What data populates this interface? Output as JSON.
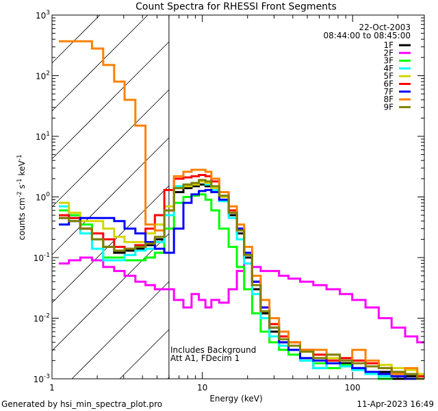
{
  "chart_data": {
    "type": "line",
    "title": "Count Spectra for RHESSI Front Segments",
    "xlabel": "Energy (keV)",
    "ylabel": [
      "counts cm",
      "-2",
      " s",
      "-1",
      " keV",
      "-1"
    ],
    "xscale": "log",
    "yscale": "log",
    "xlim": [
      1,
      300
    ],
    "ylim": [
      0.001,
      1000
    ],
    "xticks": [
      {
        "value": 1,
        "label": "1"
      },
      {
        "value": 10,
        "label": "10"
      },
      {
        "value": 100,
        "label": "100"
      }
    ],
    "yticks": [
      {
        "value": 0.001,
        "base": "10",
        "exp": "-3"
      },
      {
        "value": 0.01,
        "base": "10",
        "exp": "-2"
      },
      {
        "value": 0.1,
        "base": "10",
        "exp": "-1"
      },
      {
        "value": 1,
        "base": "10",
        "exp": "0"
      },
      {
        "value": 10,
        "base": "10",
        "exp": "1"
      },
      {
        "value": 100,
        "base": "10",
        "exp": "2"
      },
      {
        "value": 1000,
        "base": "10",
        "exp": "3"
      }
    ],
    "hatched_region_keV": [
      1,
      6
    ],
    "date": "22-Oct-2003",
    "time_range": "08:44:00 to 08:45:00",
    "annotations": [
      "Includes Background",
      "Att A1, FDecim 1"
    ],
    "legend_position": "top-right",
    "x": [
      1.2,
      1.4,
      1.7,
      2.0,
      2.4,
      2.8,
      3.3,
      3.9,
      4.5,
      5.2,
      6,
      7,
      8,
      9,
      10,
      11,
      12,
      14,
      16,
      18,
      20,
      23,
      26,
      30,
      35,
      40,
      50,
      60,
      75,
      90,
      110,
      135,
      165,
      200,
      250,
      290
    ],
    "series": [
      {
        "name": "1F",
        "color": "#000000",
        "values": [
          0.45,
          0.45,
          0.3,
          0.2,
          0.15,
          0.12,
          0.13,
          0.14,
          0.16,
          0.2,
          0.6,
          1.2,
          1.4,
          1.5,
          1.6,
          1.5,
          1.3,
          0.9,
          0.5,
          0.25,
          0.1,
          0.03,
          0.012,
          0.006,
          0.004,
          0.003,
          0.002,
          0.0015,
          0.002,
          0.0018,
          0.0015,
          0.0012,
          0.0013,
          0.001,
          0.0011,
          0.001
        ]
      },
      {
        "name": "2F",
        "color": "#ff00ff",
        "values": [
          0.08,
          0.09,
          0.1,
          0.09,
          0.07,
          0.06,
          0.05,
          0.04,
          0.035,
          0.03,
          0.03,
          0.02,
          0.015,
          0.025,
          0.02,
          0.015,
          0.02,
          0.018,
          0.03,
          0.06,
          0.08,
          0.07,
          0.06,
          0.06,
          0.05,
          0.045,
          0.04,
          0.035,
          0.03,
          0.025,
          0.02,
          0.015,
          0.01,
          0.007,
          0.005,
          0.004
        ]
      },
      {
        "name": "3F",
        "color": "#00ff00",
        "values": [
          0.6,
          0.5,
          0.35,
          0.2,
          0.1,
          0.1,
          0.09,
          0.09,
          0.1,
          0.12,
          0.3,
          0.8,
          1.0,
          1.05,
          1.1,
          0.9,
          0.6,
          0.3,
          0.15,
          0.07,
          0.03,
          0.012,
          0.006,
          0.004,
          0.003,
          0.0025,
          0.002,
          0.0018,
          0.0015,
          0.0017,
          0.0014,
          0.0012,
          0.001,
          0.0012,
          0.001,
          0.001
        ]
      },
      {
        "name": "4F",
        "color": "#00ffff",
        "values": [
          0.7,
          0.45,
          0.25,
          0.14,
          0.09,
          0.09,
          0.11,
          0.13,
          0.14,
          0.18,
          0.5,
          1.5,
          1.6,
          1.7,
          1.8,
          1.6,
          1.3,
          0.85,
          0.45,
          0.2,
          0.08,
          0.025,
          0.01,
          0.005,
          0.0035,
          0.003,
          0.002,
          0.0015,
          0.0018,
          0.0016,
          0.0014,
          0.0012,
          0.0011,
          0.0013,
          0.001,
          0.001
        ]
      },
      {
        "name": "5F",
        "color": "#d4d400",
        "values": [
          0.8,
          0.55,
          0.4,
          0.4,
          0.3,
          0.22,
          0.18,
          0.18,
          0.25,
          0.35,
          0.7,
          1.4,
          1.5,
          1.6,
          1.8,
          1.7,
          1.4,
          1.0,
          0.55,
          0.28,
          0.12,
          0.04,
          0.015,
          0.008,
          0.005,
          0.004,
          0.003,
          0.0025,
          0.0022,
          0.002,
          0.002,
          0.0018,
          0.0017,
          0.0015,
          0.0014,
          0.0012
        ]
      },
      {
        "name": "6F",
        "color": "#ff0000",
        "values": [
          0.5,
          0.45,
          0.3,
          0.25,
          0.2,
          0.15,
          0.14,
          0.16,
          0.3,
          0.5,
          1.3,
          2.0,
          2.1,
          2.2,
          2.3,
          2.2,
          1.8,
          1.2,
          0.6,
          0.3,
          0.12,
          0.04,
          0.015,
          0.008,
          0.005,
          0.004,
          0.003,
          0.0025,
          0.002,
          0.0022,
          0.002,
          0.0018,
          0.0015,
          0.0013,
          0.0012,
          0.0011
        ]
      },
      {
        "name": "7F",
        "color": "#0000ff",
        "values": [
          0.35,
          0.4,
          0.45,
          0.45,
          0.45,
          0.4,
          0.3,
          0.25,
          0.18,
          0.14,
          0.12,
          0.3,
          0.8,
          1.1,
          1.25,
          1.3,
          1.2,
          0.9,
          0.55,
          0.3,
          0.12,
          0.04,
          0.015,
          0.007,
          0.004,
          0.003,
          0.0022,
          0.002,
          0.0018,
          0.002,
          0.0015,
          0.0013,
          0.0012,
          0.0011,
          0.001,
          0.001
        ]
      },
      {
        "name": "8F",
        "color": "#ff8000",
        "values": [
          370,
          370,
          370,
          280,
          150,
          80,
          40,
          15,
          0.35,
          0.28,
          0.6,
          2.2,
          2.6,
          2.8,
          2.8,
          2.6,
          2.0,
          1.2,
          0.7,
          0.35,
          0.15,
          0.05,
          0.02,
          0.01,
          0.006,
          0.004,
          0.003,
          0.003,
          0.0025,
          0.002,
          0.003,
          0.002,
          0.0015,
          0.0012,
          0.0015,
          0.001
        ]
      },
      {
        "name": "9F",
        "color": "#808000",
        "values": [
          0.45,
          0.4,
          0.3,
          0.2,
          0.15,
          0.13,
          0.14,
          0.15,
          0.17,
          0.22,
          0.6,
          1.4,
          1.6,
          1.7,
          1.9,
          1.8,
          1.5,
          1.05,
          0.55,
          0.28,
          0.11,
          0.035,
          0.013,
          0.007,
          0.0045,
          0.0035,
          0.0028,
          0.0022,
          0.0025,
          0.002,
          0.0018,
          0.0016,
          0.0015,
          0.0013,
          0.0012,
          0.001
        ]
      }
    ]
  },
  "footer": {
    "generated": "Generated by hsi_min_spectra_plot.pro",
    "timestamp": "11-Apr-2023 16:49"
  }
}
